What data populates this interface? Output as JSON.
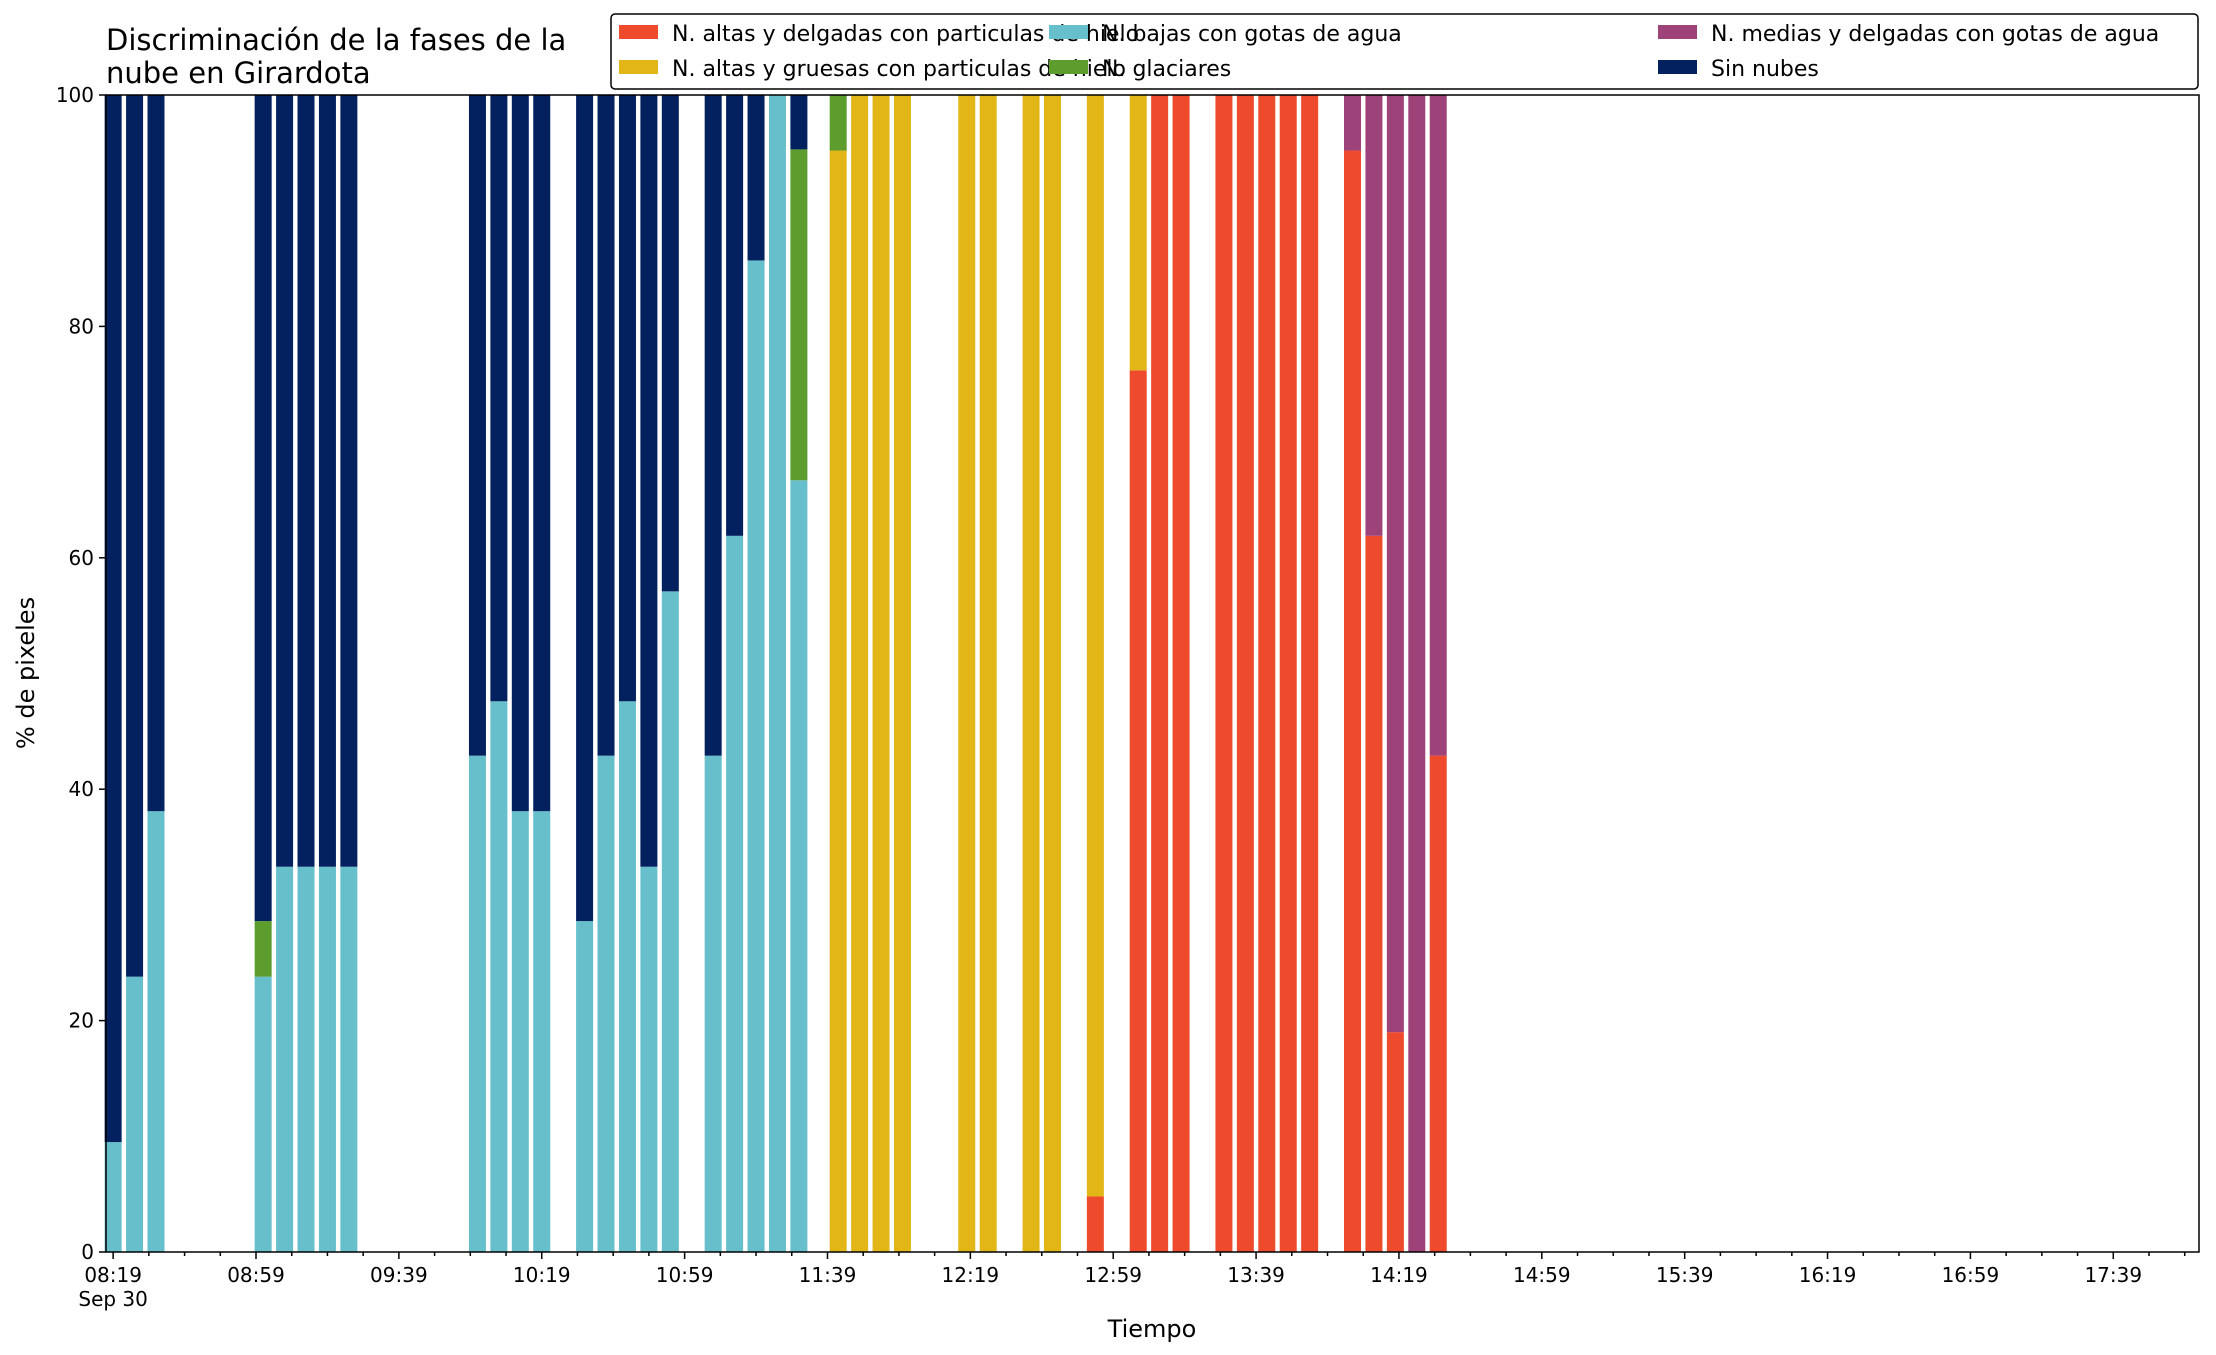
{
  "chart_data": {
    "type": "bar",
    "stacked": true,
    "title_lines": [
      "Discriminación de la fases de la",
      "nube en Girardota"
    ],
    "xlabel": "Tiempo",
    "ylabel": "% de pixeles",
    "ylim": [
      0,
      100
    ],
    "yticks": [
      0,
      20,
      40,
      60,
      80,
      100
    ],
    "grid": false,
    "legend_position": "top-right",
    "x_start": "08:19",
    "x_end": "17:59",
    "x_tick_step_minutes": 10,
    "x_tick_labels": [
      {
        "time": "08:19",
        "label": "08:19",
        "sublabel": "Sep 30"
      },
      {
        "time": "08:59",
        "label": "08:59"
      },
      {
        "time": "09:39",
        "label": "09:39"
      },
      {
        "time": "10:19",
        "label": "10:19"
      },
      {
        "time": "10:59",
        "label": "10:59"
      },
      {
        "time": "11:39",
        "label": "11:39"
      },
      {
        "time": "12:19",
        "label": "12:19"
      },
      {
        "time": "12:59",
        "label": "12:59"
      },
      {
        "time": "13:39",
        "label": "13:39"
      },
      {
        "time": "14:19",
        "label": "14:19"
      },
      {
        "time": "14:59",
        "label": "14:59"
      },
      {
        "time": "15:39",
        "label": "15:39"
      },
      {
        "time": "16:19",
        "label": "16:19"
      },
      {
        "time": "16:59",
        "label": "16:59"
      },
      {
        "time": "17:39",
        "label": "17:39"
      }
    ],
    "series": [
      {
        "name": "N. altas y delgadas con particulas de hielo",
        "color": "#ee4a2c"
      },
      {
        "name": "N. altas y gruesas con particulas de hielo",
        "color": "#e3b617"
      },
      {
        "name": "N. bajas con gotas de agua",
        "color": "#66bfca"
      },
      {
        "name": "N. glaciares",
        "color": "#5c9d2e"
      },
      {
        "name": "N. medias y delgadas con gotas de agua",
        "color": "#9e437a"
      },
      {
        "name": "Sin nubes",
        "color": "#03215e"
      }
    ],
    "stack_order": [
      "N. altas y delgadas con particulas de hielo",
      "N. altas y gruesas con particulas de hielo",
      "N. bajas con gotas de agua",
      "N. glaciares",
      "N. medias y delgadas con gotas de agua",
      "Sin nubes"
    ],
    "bars": [
      {
        "time": "08:19",
        "values": [
          0,
          0,
          9.5,
          0,
          0,
          90.5
        ]
      },
      {
        "time": "08:25",
        "values": [
          0,
          0,
          23.8,
          0,
          0,
          76.2
        ]
      },
      {
        "time": "08:31",
        "values": [
          0,
          0,
          38.1,
          0,
          0,
          61.9
        ]
      },
      {
        "time": "09:01",
        "values": [
          0,
          0,
          23.8,
          4.8,
          0,
          71.4
        ]
      },
      {
        "time": "09:07",
        "values": [
          0,
          0,
          33.3,
          0,
          0,
          66.7
        ]
      },
      {
        "time": "09:13",
        "values": [
          0,
          0,
          33.3,
          0,
          0,
          66.7
        ]
      },
      {
        "time": "09:19",
        "values": [
          0,
          0,
          33.3,
          0,
          0,
          66.7
        ]
      },
      {
        "time": "09:25",
        "values": [
          0,
          0,
          33.3,
          0,
          0,
          66.7
        ]
      },
      {
        "time": "10:01",
        "values": [
          0,
          0,
          42.9,
          0,
          0,
          57.1
        ]
      },
      {
        "time": "10:07",
        "values": [
          0,
          0,
          47.6,
          0,
          0,
          52.4
        ]
      },
      {
        "time": "10:13",
        "values": [
          0,
          0,
          38.1,
          0,
          0,
          61.9
        ]
      },
      {
        "time": "10:19",
        "values": [
          0,
          0,
          38.1,
          0,
          0,
          61.9
        ]
      },
      {
        "time": "10:31",
        "values": [
          0,
          0,
          28.6,
          0,
          0,
          71.4
        ]
      },
      {
        "time": "10:37",
        "values": [
          0,
          0,
          42.9,
          0,
          0,
          57.1
        ]
      },
      {
        "time": "10:43",
        "values": [
          0,
          0,
          47.6,
          0,
          0,
          52.4
        ]
      },
      {
        "time": "10:49",
        "values": [
          0,
          0,
          33.3,
          0,
          0,
          66.7
        ]
      },
      {
        "time": "10:55",
        "values": [
          0,
          0,
          57.1,
          0,
          0,
          42.9
        ]
      },
      {
        "time": "11:07",
        "values": [
          0,
          0,
          42.9,
          0,
          0,
          57.1
        ]
      },
      {
        "time": "11:13",
        "values": [
          0,
          0,
          61.9,
          0,
          0,
          38.1
        ]
      },
      {
        "time": "11:19",
        "values": [
          0,
          0,
          85.7,
          0,
          0,
          14.3
        ]
      },
      {
        "time": "11:25",
        "values": [
          0,
          0,
          100,
          0,
          0,
          0
        ]
      },
      {
        "time": "11:31",
        "values": [
          0,
          0,
          66.7,
          28.6,
          0,
          4.7
        ]
      },
      {
        "time": "11:42",
        "values": [
          0,
          95.2,
          0,
          4.8,
          0,
          0
        ]
      },
      {
        "time": "11:48",
        "values": [
          0,
          100,
          0,
          0,
          0,
          0
        ]
      },
      {
        "time": "11:54",
        "values": [
          0,
          100,
          0,
          0,
          0,
          0
        ]
      },
      {
        "time": "12:00",
        "values": [
          0,
          100,
          0,
          0,
          0,
          0
        ]
      },
      {
        "time": "12:18",
        "values": [
          0,
          100,
          0,
          0,
          0,
          0
        ]
      },
      {
        "time": "12:24",
        "values": [
          0,
          100,
          0,
          0,
          0,
          0
        ]
      },
      {
        "time": "12:36",
        "values": [
          0,
          100,
          0,
          0,
          0,
          0
        ]
      },
      {
        "time": "12:42",
        "values": [
          0,
          100,
          0,
          0,
          0,
          0
        ]
      },
      {
        "time": "12:54",
        "values": [
          4.8,
          95.2,
          0,
          0,
          0,
          0
        ]
      },
      {
        "time": "13:06",
        "values": [
          76.2,
          23.8,
          0,
          0,
          0,
          0
        ]
      },
      {
        "time": "13:12",
        "values": [
          100,
          0,
          0,
          0,
          0,
          0
        ]
      },
      {
        "time": "13:18",
        "values": [
          100,
          0,
          0,
          0,
          0,
          0
        ]
      },
      {
        "time": "13:30",
        "values": [
          100,
          0,
          0,
          0,
          0,
          0
        ]
      },
      {
        "time": "13:36",
        "values": [
          100,
          0,
          0,
          0,
          0,
          0
        ]
      },
      {
        "time": "13:42",
        "values": [
          100,
          0,
          0,
          0,
          0,
          0
        ]
      },
      {
        "time": "13:48",
        "values": [
          100,
          0,
          0,
          0,
          0,
          0
        ]
      },
      {
        "time": "13:54",
        "values": [
          100,
          0,
          0,
          0,
          0,
          0
        ]
      },
      {
        "time": "14:06",
        "values": [
          95.2,
          0,
          0,
          0,
          4.8,
          0
        ]
      },
      {
        "time": "14:12",
        "values": [
          61.9,
          0,
          0,
          0,
          38.1,
          0
        ]
      },
      {
        "time": "14:18",
        "values": [
          19.0,
          0,
          0,
          0,
          81.0,
          0
        ]
      },
      {
        "time": "14:24",
        "values": [
          0,
          0,
          0,
          0,
          100,
          0
        ]
      },
      {
        "time": "14:30",
        "values": [
          42.9,
          0,
          0,
          0,
          57.1,
          0
        ]
      }
    ]
  }
}
